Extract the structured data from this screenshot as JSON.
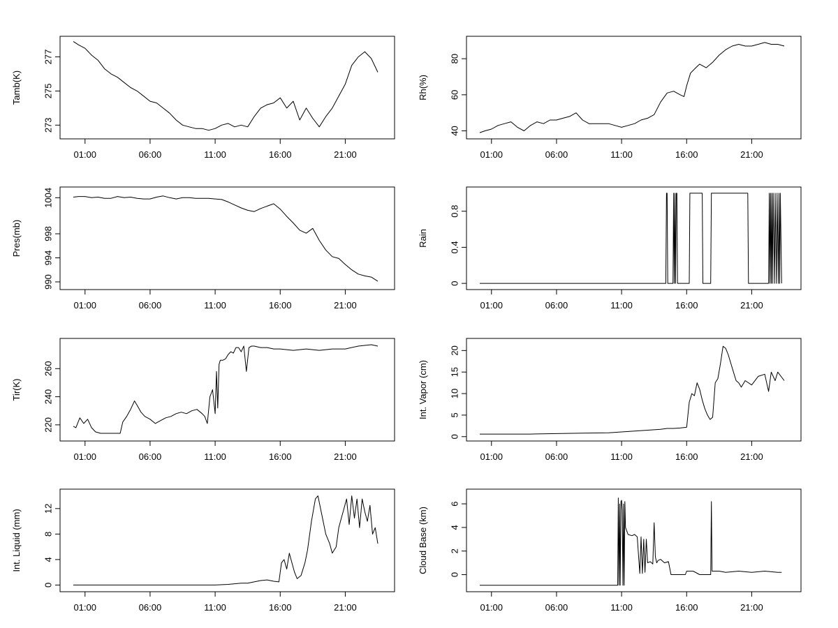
{
  "chart_data": [
    {
      "type": "line",
      "title": "",
      "xlabel": "",
      "ylabel": "Tamb(K)",
      "xticks": [
        "01:00",
        "06:00",
        "11:00",
        "16:00",
        "21:00"
      ],
      "xlim": [
        0.0,
        24.0
      ],
      "ylim": [
        272.4,
        278.0
      ],
      "yticks": [
        273,
        275,
        277
      ],
      "series": [
        {
          "x": [
            0.1,
            0.5,
            1.0,
            1.5,
            2.0,
            2.5,
            3.0,
            3.5,
            4.0,
            4.5,
            5.0,
            5.5,
            6.0,
            6.5,
            7.0,
            7.5,
            8.0,
            8.5,
            9.0,
            9.5,
            10.0,
            10.5,
            11.0,
            11.5,
            12.0,
            12.5,
            13.0,
            13.5,
            14.0,
            14.5,
            15.0,
            15.5,
            16.0,
            16.5,
            17.0,
            17.5,
            18.0,
            18.5,
            19.0,
            19.5,
            20.0,
            20.5,
            21.0,
            21.5,
            22.0,
            22.5,
            23.0,
            23.5
          ],
          "y": [
            277.9,
            277.7,
            277.5,
            277.1,
            276.8,
            276.3,
            276.0,
            275.8,
            275.5,
            275.2,
            275.0,
            274.7,
            274.4,
            274.3,
            274.0,
            273.7,
            273.3,
            273.0,
            272.9,
            272.8,
            272.8,
            272.7,
            272.8,
            273.0,
            273.1,
            272.9,
            273.0,
            272.9,
            273.5,
            274.0,
            274.2,
            274.3,
            274.6,
            274.0,
            274.4,
            273.3,
            274.0,
            273.4,
            272.9,
            273.5,
            274.0,
            274.7,
            275.4,
            276.5,
            277.0,
            277.3,
            276.9,
            276.1
          ]
        }
      ]
    },
    {
      "type": "line",
      "title": "",
      "xlabel": "",
      "ylabel": "Rh(%)",
      "xticks": [
        "01:00",
        "06:00",
        "11:00",
        "16:00",
        "21:00"
      ],
      "xlim": [
        0.0,
        24.0
      ],
      "ylim": [
        37.5,
        90.5
      ],
      "yticks": [
        40,
        60,
        80
      ],
      "series": [
        {
          "x": [
            0.1,
            0.5,
            1.0,
            1.5,
            2.0,
            2.5,
            3.0,
            3.5,
            4.0,
            4.5,
            5.0,
            5.5,
            6.0,
            6.5,
            7.0,
            7.5,
            8.0,
            8.5,
            9.0,
            9.5,
            10.0,
            10.5,
            11.0,
            11.5,
            12.0,
            12.5,
            13.0,
            13.5,
            14.0,
            14.5,
            15.0,
            15.5,
            15.8,
            16.0,
            16.3,
            16.7,
            17.0,
            17.5,
            18.0,
            18.5,
            19.0,
            19.5,
            20.0,
            20.5,
            21.0,
            21.5,
            22.0,
            22.5,
            23.0,
            23.5
          ],
          "y": [
            39,
            40,
            41,
            43,
            44,
            45,
            42,
            40,
            43,
            45,
            44,
            46,
            46,
            47,
            48,
            50,
            46,
            44,
            44,
            44,
            44,
            43,
            42,
            43,
            44,
            46,
            47,
            49,
            56,
            61,
            62,
            60,
            59,
            65,
            72,
            75,
            77,
            75,
            78,
            82,
            85,
            87,
            88,
            87,
            87,
            88,
            89,
            88,
            88,
            87
          ]
        }
      ]
    },
    {
      "type": "line",
      "title": "",
      "xlabel": "",
      "ylabel": "Pres(mb)",
      "xticks": [
        "01:00",
        "06:00",
        "11:00",
        "16:00",
        "21:00"
      ],
      "xlim": [
        0.0,
        24.0
      ],
      "ylim": [
        989.3,
        1005.2
      ],
      "yticks": [
        990,
        994,
        998,
        1004
      ],
      "series": [
        {
          "x": [
            0.1,
            0.5,
            1.0,
            1.5,
            2.0,
            2.5,
            3.0,
            3.5,
            4.0,
            4.5,
            5.0,
            5.5,
            6.0,
            6.5,
            7.0,
            7.5,
            8.0,
            8.5,
            9.0,
            9.5,
            10.0,
            10.5,
            11.0,
            11.5,
            12.0,
            12.5,
            13.0,
            13.5,
            14.0,
            14.5,
            15.0,
            15.5,
            16.0,
            16.5,
            17.0,
            17.5,
            18.0,
            18.5,
            19.0,
            19.5,
            20.0,
            20.5,
            21.0,
            21.5,
            22.0,
            22.5,
            23.0,
            23.5
          ],
          "y": [
            1004.1,
            1004.2,
            1004.2,
            1004.0,
            1004.1,
            1003.9,
            1003.9,
            1004.2,
            1004.0,
            1004.1,
            1003.9,
            1003.8,
            1003.8,
            1004.1,
            1004.3,
            1004.0,
            1003.8,
            1004.0,
            1004.0,
            1003.9,
            1003.9,
            1003.9,
            1003.8,
            1003.7,
            1003.3,
            1002.8,
            1002.3,
            1001.9,
            1001.7,
            1002.2,
            1002.6,
            1003.0,
            1002.1,
            1000.9,
            999.8,
            998.6,
            998.1,
            998.9,
            996.9,
            995.3,
            994.2,
            993.9,
            992.9,
            992.0,
            991.3,
            991.0,
            990.8,
            990.1
          ]
        }
      ]
    },
    {
      "type": "line",
      "title": "",
      "xlabel": "",
      "ylabel": "Rain",
      "xticks": [
        "01:00",
        "06:00",
        "11:00",
        "16:00",
        "21:00"
      ],
      "xlim": [
        0.0,
        24.0
      ],
      "ylim": [
        -0.03,
        1.03
      ],
      "yticks": [
        0.0,
        0.4,
        0.8
      ],
      "series": [
        {
          "x": [
            0.1,
            14.4,
            14.45,
            14.5,
            14.55,
            14.95,
            15.0,
            15.05,
            15.1,
            15.15,
            15.2,
            15.25,
            15.3,
            16.2,
            16.25,
            17.2,
            17.25,
            17.85,
            17.9,
            20.7,
            20.75,
            22.3,
            22.35,
            22.4,
            22.45,
            22.5,
            22.55,
            22.6,
            22.65,
            22.75,
            22.8,
            22.9,
            22.95,
            23.05,
            23.1,
            23.15,
            23.2,
            23.3
          ],
          "y": [
            0,
            0,
            1,
            1,
            0,
            0,
            1,
            0,
            1,
            0,
            1,
            1,
            0,
            0,
            1,
            1,
            0,
            0,
            1,
            1,
            0,
            0,
            1,
            0,
            1,
            0,
            1,
            0,
            1,
            0,
            1,
            0,
            1,
            0,
            1,
            0,
            1,
            0
          ]
        }
      ]
    },
    {
      "type": "line",
      "title": "",
      "xlabel": "",
      "ylabel": "Tir(K)",
      "xticks": [
        "01:00",
        "06:00",
        "11:00",
        "16:00",
        "21:00"
      ],
      "xlim": [
        0.0,
        24.0
      ],
      "ylim": [
        211.0,
        279.0
      ],
      "yticks": [
        220,
        240,
        260
      ],
      "series": [
        {
          "x": [
            0.1,
            0.3,
            0.6,
            0.9,
            1.2,
            1.5,
            1.8,
            2.2,
            2.6,
            3.0,
            3.4,
            3.7,
            3.9,
            4.2,
            4.5,
            4.8,
            5.0,
            5.3,
            5.6,
            6.0,
            6.4,
            6.8,
            7.2,
            7.6,
            8.0,
            8.4,
            8.8,
            9.2,
            9.6,
            10.0,
            10.2,
            10.4,
            10.6,
            10.8,
            11.0,
            11.1,
            11.2,
            11.3,
            11.4,
            11.5,
            11.6,
            11.8,
            12.0,
            12.2,
            12.4,
            12.6,
            12.8,
            13.0,
            13.2,
            13.4,
            13.6,
            13.8,
            14.0,
            14.5,
            15.0,
            15.5,
            16.0,
            17.0,
            18.0,
            19.0,
            20.0,
            21.0,
            22.0,
            23.0,
            23.5
          ],
          "y": [
            219,
            218,
            225,
            221,
            224,
            218,
            215,
            214,
            214,
            214,
            214,
            214,
            222,
            226,
            231,
            237,
            234,
            229,
            226,
            224,
            221,
            223,
            225,
            226,
            228,
            229,
            228,
            230,
            231,
            228,
            226,
            221,
            240,
            245,
            228,
            258,
            232,
            263,
            266,
            266,
            266,
            267,
            270,
            272,
            271,
            275,
            275,
            272,
            276,
            258,
            275,
            276,
            276,
            275,
            275,
            274,
            274,
            273,
            274,
            273,
            274,
            274,
            276,
            277,
            276
          ]
        }
      ]
    },
    {
      "type": "line",
      "title": "",
      "xlabel": "",
      "ylabel": "Int. Vapor (cm)",
      "xticks": [
        "01:00",
        "06:00",
        "11:00",
        "16:00",
        "21:00"
      ],
      "xlim": [
        0.0,
        24.0
      ],
      "ylim": [
        -0.2,
        22.0
      ],
      "yticks": [
        0,
        5,
        10,
        15,
        20
      ],
      "series": [
        {
          "x": [
            0.1,
            2.0,
            4.0,
            6.0,
            8.0,
            10.0,
            11.0,
            12.0,
            13.0,
            14.0,
            14.5,
            15.0,
            15.5,
            16.0,
            16.2,
            16.4,
            16.6,
            16.8,
            17.0,
            17.2,
            17.4,
            17.6,
            17.8,
            18.0,
            18.2,
            18.4,
            18.6,
            18.8,
            19.0,
            19.2,
            19.4,
            19.6,
            19.8,
            20.0,
            20.2,
            20.5,
            21.0,
            21.5,
            22.0,
            22.3,
            22.5,
            22.8,
            23.0,
            23.5
          ],
          "y": [
            0.6,
            0.6,
            0.6,
            0.7,
            0.8,
            0.9,
            1.1,
            1.3,
            1.5,
            1.7,
            1.9,
            1.9,
            2.0,
            2.2,
            8.0,
            10.0,
            9.5,
            12.5,
            11.0,
            8.5,
            6.5,
            5.0,
            4.0,
            4.5,
            12.5,
            13.5,
            17.0,
            21.0,
            20.5,
            19.0,
            17.0,
            15.0,
            13.0,
            12.5,
            11.5,
            13.0,
            12.0,
            14.0,
            14.5,
            10.5,
            15.0,
            13.0,
            15.0,
            13.0
          ]
        }
      ]
    },
    {
      "type": "line",
      "title": "",
      "xlabel": "",
      "ylabel": "Int. Liquid (mm)",
      "xticks": [
        "01:00",
        "06:00",
        "11:00",
        "16:00",
        "21:00"
      ],
      "xlim": [
        0.0,
        24.0
      ],
      "ylim": [
        -0.5,
        14.5
      ],
      "yticks": [
        0,
        4,
        8,
        12
      ],
      "series": [
        {
          "x": [
            0.1,
            6.0,
            11.0,
            12.0,
            12.5,
            13.0,
            13.5,
            14.0,
            14.5,
            15.0,
            15.5,
            15.9,
            16.1,
            16.3,
            16.5,
            16.7,
            16.9,
            17.1,
            17.3,
            17.6,
            17.9,
            18.1,
            18.4,
            18.7,
            18.9,
            19.2,
            19.5,
            19.8,
            20.0,
            20.3,
            20.5,
            20.7,
            20.9,
            21.1,
            21.3,
            21.5,
            21.7,
            21.9,
            22.1,
            22.3,
            22.5,
            22.7,
            22.9,
            23.1,
            23.3,
            23.5
          ],
          "y": [
            0,
            0,
            0,
            0.1,
            0.2,
            0.3,
            0.3,
            0.5,
            0.7,
            0.8,
            0.6,
            0.5,
            3.5,
            4.0,
            2.5,
            5.0,
            3.5,
            2.0,
            1.0,
            1.5,
            3.5,
            5.5,
            10.0,
            13.5,
            14.0,
            11.0,
            8.0,
            6.5,
            5.0,
            6.0,
            9.0,
            10.5,
            12.0,
            13.5,
            9.5,
            14.0,
            10.5,
            13.5,
            9.0,
            13.5,
            11.5,
            10.0,
            12.5,
            8.0,
            9.0,
            6.5
          ]
        }
      ]
    },
    {
      "type": "line",
      "title": "",
      "xlabel": "",
      "ylabel": "Cloud Base (km)",
      "xticks": [
        "01:00",
        "06:00",
        "11:00",
        "16:00",
        "21:00"
      ],
      "xlim": [
        0.0,
        24.0
      ],
      "ylim": [
        -1.15,
        6.95
      ],
      "yticks": [
        0,
        2,
        4,
        6
      ],
      "series": [
        {
          "x": [
            0.1,
            10.7,
            10.75,
            10.8,
            10.85,
            10.9,
            10.95,
            11.0,
            11.05,
            11.1,
            11.15,
            11.2,
            11.25,
            11.3,
            11.5,
            11.8,
            12.0,
            12.2,
            12.4,
            12.5,
            12.6,
            12.7,
            12.8,
            12.9,
            13.0,
            13.2,
            13.4,
            13.5,
            13.6,
            13.7,
            13.8,
            14.0,
            14.3,
            14.6,
            14.8,
            15.0,
            15.5,
            15.9,
            16.0,
            16.2,
            16.5,
            17.0,
            17.5,
            17.85,
            17.9,
            17.95,
            18.0,
            18.5,
            19.0,
            20.0,
            21.0,
            22.0,
            23.0,
            23.3
          ],
          "y": [
            -0.9,
            -0.9,
            6.5,
            -0.9,
            6.0,
            -0.9,
            6.2,
            6.3,
            5.5,
            -0.9,
            6.0,
            -0.9,
            6.2,
            4.0,
            3.4,
            3.3,
            3.4,
            3.2,
            0.1,
            3.2,
            0.1,
            3.0,
            0.2,
            3.0,
            1.0,
            1.1,
            0.9,
            4.4,
            1.5,
            1.0,
            1.2,
            1.3,
            1.0,
            1.1,
            0.0,
            0.0,
            0.0,
            0.0,
            0.3,
            0.3,
            0.3,
            0.0,
            0.0,
            0.0,
            6.2,
            0.3,
            0.3,
            0.3,
            0.2,
            0.3,
            0.2,
            0.3,
            0.2,
            0.2
          ]
        }
      ]
    }
  ]
}
